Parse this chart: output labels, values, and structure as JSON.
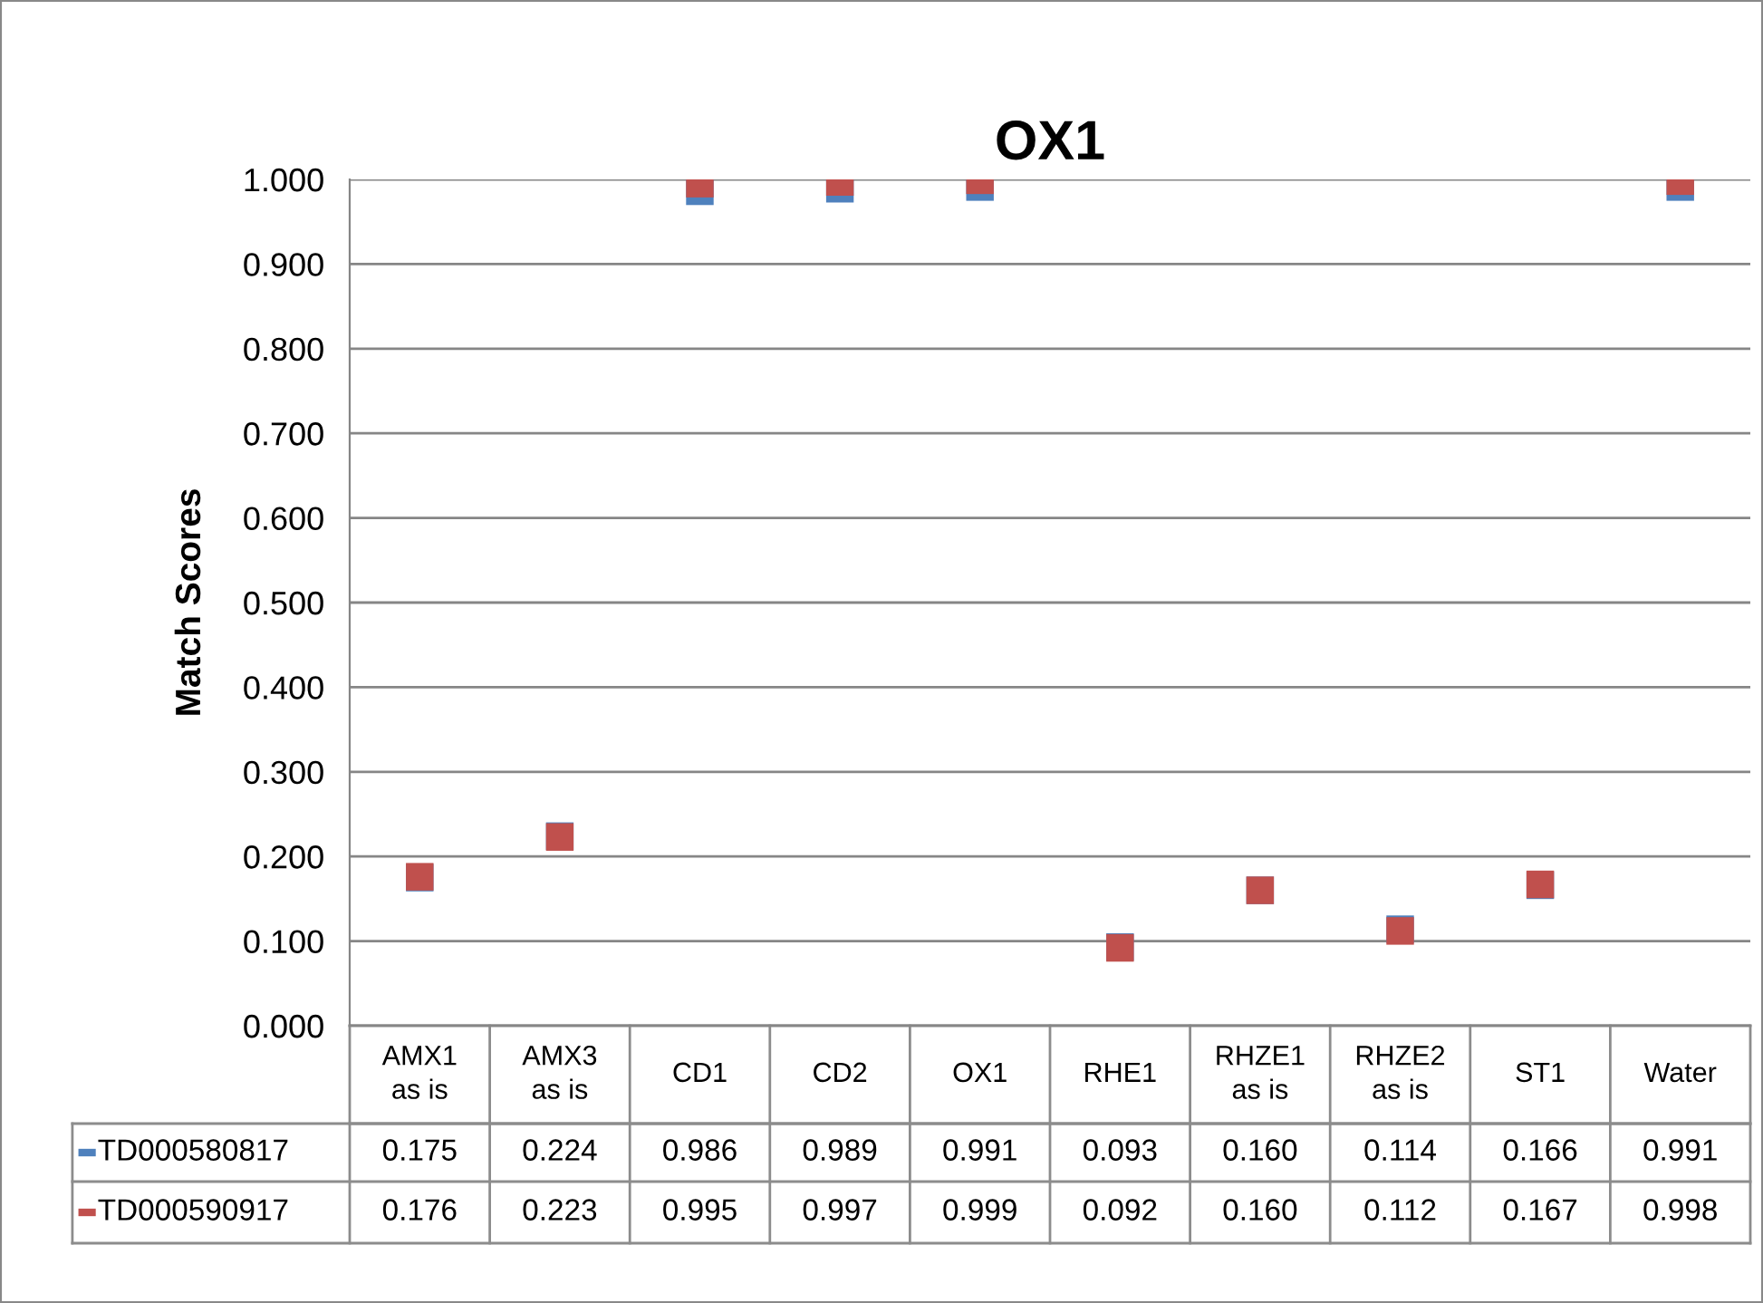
{
  "chart_data": {
    "type": "scatter",
    "title": "OX1",
    "ylabel": "Match Scores",
    "categories": [
      "AMX1\nas is",
      "AMX3\nas is",
      "CD1",
      "CD2",
      "OX1",
      "RHE1",
      "RHZE1\nas is",
      "RHZE2\nas is",
      "ST1",
      "Water"
    ],
    "series": [
      {
        "name": "TD000580817",
        "color": "#4f81bd",
        "values": [
          0.175,
          0.224,
          0.986,
          0.989,
          0.991,
          0.093,
          0.16,
          0.114,
          0.166,
          0.991
        ],
        "value_labels": [
          "0.175",
          "0.224",
          "0.986",
          "0.989",
          "0.991",
          "0.093",
          "0.160",
          "0.114",
          "0.166",
          "0.991"
        ]
      },
      {
        "name": "TD000590917",
        "color": "#c0504d",
        "values": [
          0.176,
          0.223,
          0.995,
          0.997,
          0.999,
          0.092,
          0.16,
          0.112,
          0.167,
          0.998
        ],
        "value_labels": [
          "0.176",
          "0.223",
          "0.995",
          "0.997",
          "0.999",
          "0.092",
          "0.160",
          "0.112",
          "0.167",
          "0.998"
        ]
      }
    ],
    "ylim": [
      0,
      1
    ],
    "yticks": [
      {
        "value": 0,
        "label": "0.000"
      },
      {
        "value": 0.1,
        "label": "0.100"
      },
      {
        "value": 0.2,
        "label": "0.200"
      },
      {
        "value": 0.3,
        "label": "0.300"
      },
      {
        "value": 0.4,
        "label": "0.400"
      },
      {
        "value": 0.5,
        "label": "0.500"
      },
      {
        "value": 0.6,
        "label": "0.600"
      },
      {
        "value": 0.7,
        "label": "0.700"
      },
      {
        "value": 0.8,
        "label": "0.800"
      },
      {
        "value": 0.9,
        "label": "0.900"
      },
      {
        "value": 1,
        "label": "1.000"
      }
    ],
    "grid": "y",
    "marker": "square",
    "legend": "bottom left"
  }
}
